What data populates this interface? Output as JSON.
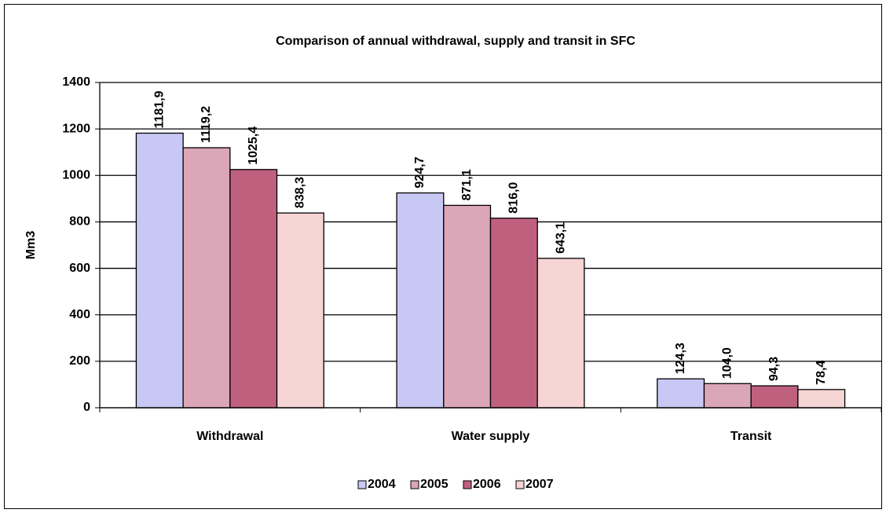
{
  "chart_data": {
    "type": "bar",
    "title": "Comparison of annual withdrawal, supply and transit in SFC",
    "y_label": "Mm3",
    "categories": [
      "Withdrawal",
      "Water supply",
      "Transit"
    ],
    "series": [
      {
        "name": "2004",
        "color": "#c8c8f4",
        "values": [
          1181.9,
          924.7,
          124.3
        ],
        "value_labels": [
          "1181,9",
          "924,7",
          "124,3"
        ]
      },
      {
        "name": "2005",
        "color": "#dba6b8",
        "values": [
          1119.2,
          871.1,
          104.0
        ],
        "value_labels": [
          "1119,2",
          "871,1",
          "104,0"
        ]
      },
      {
        "name": "2006",
        "color": "#c0607f",
        "values": [
          1025.4,
          816.0,
          94.3
        ],
        "value_labels": [
          "1025,4",
          "816,0",
          "94,3"
        ]
      },
      {
        "name": "2007",
        "color": "#f6d4d4",
        "values": [
          838.3,
          643.1,
          78.4
        ],
        "value_labels": [
          "838,3",
          "643,1",
          "78,4"
        ]
      }
    ],
    "ylim": [
      0,
      1400
    ],
    "yticks": [
      0,
      200,
      400,
      600,
      800,
      1000,
      1200,
      1400
    ],
    "grid": true
  }
}
